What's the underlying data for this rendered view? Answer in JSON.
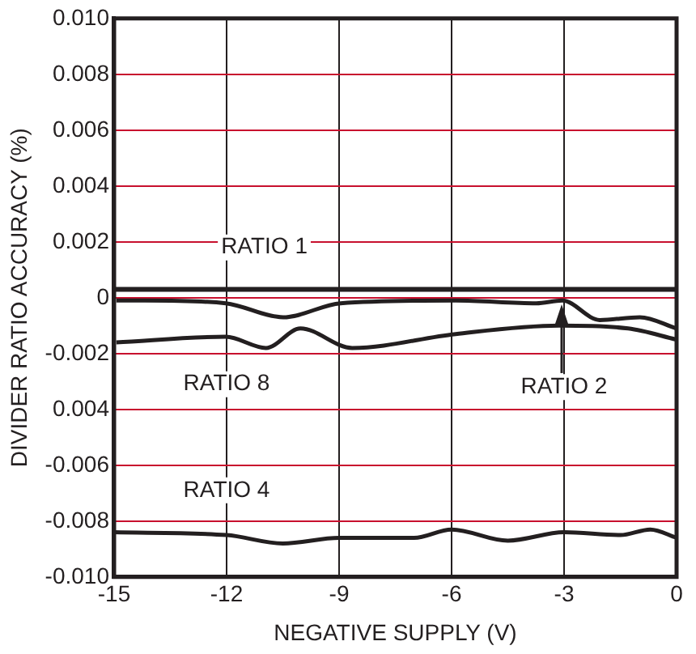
{
  "chart_data": {
    "type": "line",
    "xlabel": "NEGATIVE SUPPLY (V)",
    "ylabel": "DIVIDER RATIO ACCURACY (%)",
    "xlim": [
      -15,
      0
    ],
    "xticks": [
      -15,
      -12,
      -9,
      -6,
      -3,
      0
    ],
    "ylim": [
      -0.01,
      0.01
    ],
    "yticks": [
      {
        "value": -0.01,
        "label": "-0.010"
      },
      {
        "value": -0.008,
        "label": "-0.008"
      },
      {
        "value": -0.006,
        "label": "-0.006"
      },
      {
        "value": -0.004,
        "label": "0.004"
      },
      {
        "value": -0.002,
        "label": "-0.002"
      },
      0,
      {
        "value": 0.002,
        "label": "0.002"
      },
      {
        "value": 0.004,
        "label": "0.004"
      },
      {
        "value": 0.006,
        "label": "0.006"
      },
      {
        "value": 0.008,
        "label": "0.008"
      },
      {
        "value": 0.01,
        "label": "0.010"
      }
    ],
    "grid": true,
    "legend": false,
    "marker": "none",
    "line_style": "solid",
    "series": [
      {
        "name": "RATIO 1",
        "color": "#231f20",
        "x": [
          -15,
          0
        ],
        "values": [
          0.0003,
          0.0003
        ]
      },
      {
        "name": "RATIO 2",
        "color": "#231f20",
        "x": [
          -14.94,
          -14.17,
          -12.02,
          -10.49,
          -8.96,
          -5.89,
          -3.74,
          -3.05,
          -2.05,
          -0.98,
          0
        ],
        "values": [
          -0.0001,
          -0.0001,
          -0.0002,
          -0.0007,
          -0.0002,
          -0.0001,
          -0.0002,
          -0.0001,
          -0.0008,
          -0.0007,
          -0.0011
        ]
      },
      {
        "name": "RATIO 8",
        "color": "#231f20",
        "x": [
          -14.94,
          -12.02,
          -10.95,
          -10.03,
          -8.65,
          -5.89,
          -3.13,
          -1.29,
          0
        ],
        "values": [
          -0.0016,
          -0.0014,
          -0.0018,
          -0.0011,
          -0.0018,
          -0.0013,
          -0.001,
          -0.0011,
          -0.0015
        ]
      },
      {
        "name": "RATIO 4",
        "color": "#231f20",
        "x": [
          -15,
          -12,
          -10.5,
          -9,
          -7,
          -6,
          -4.5,
          -3,
          -1.5,
          -0.7,
          0
        ],
        "values": [
          -0.0084,
          -0.0085,
          -0.0088,
          -0.0086,
          -0.0086,
          -0.0083,
          -0.0087,
          -0.0084,
          -0.0085,
          -0.0083,
          -0.0086
        ]
      }
    ]
  }
}
